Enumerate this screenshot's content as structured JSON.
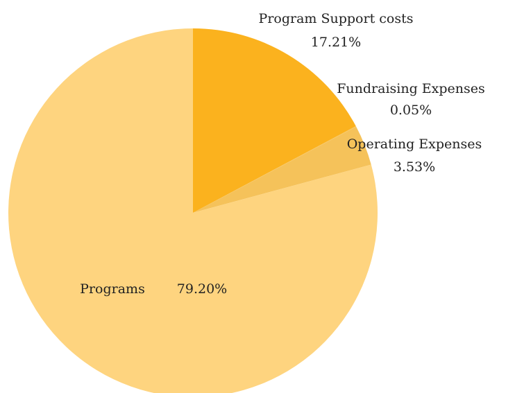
{
  "chart_data": {
    "type": "pie",
    "categories": [
      "Program Support costs",
      "Fundraising Expenses",
      "Operating Expenses",
      "Programs"
    ],
    "values": [
      17.21,
      0.05,
      3.53,
      79.2
    ],
    "value_labels": [
      "17.21%",
      "0.05%",
      "3.53%",
      "79.20%"
    ],
    "colors": [
      "#fbb21e",
      "#f6c257",
      "#f5c25a",
      "#fed47f"
    ]
  }
}
